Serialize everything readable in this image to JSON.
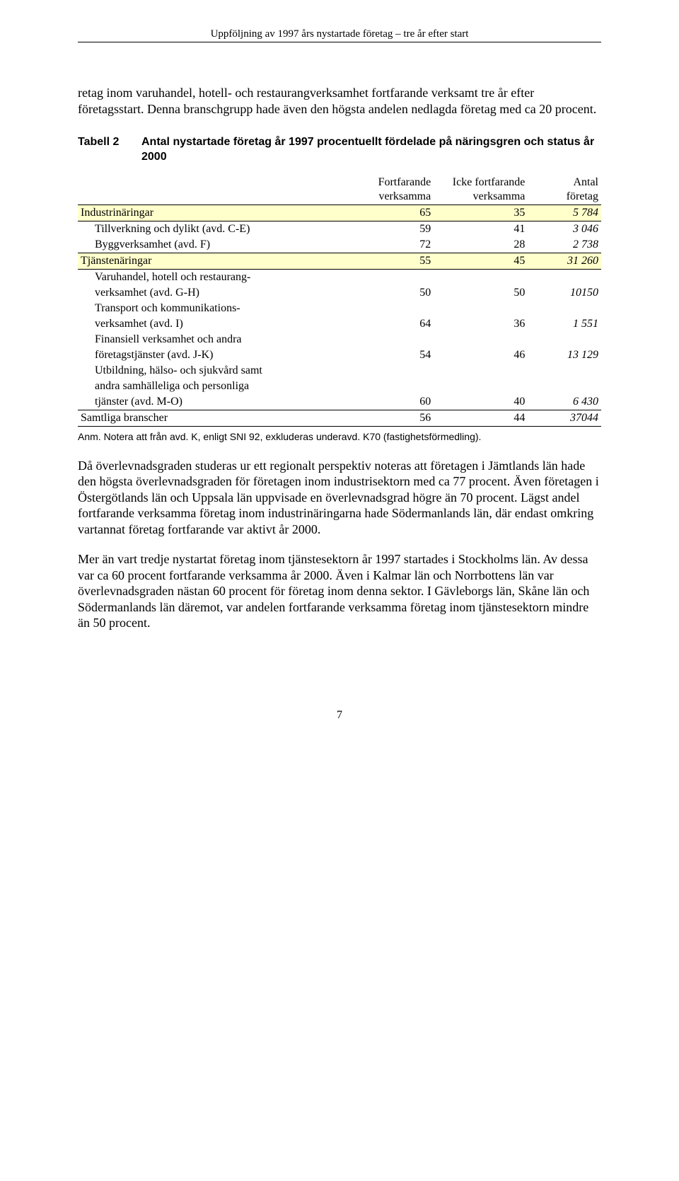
{
  "running_head": "Uppföljning av 1997 års nystartade företag – tre år efter start",
  "intro_para": "retag inom varuhandel, hotell- och restaurangverksamhet fortfarande verksamt tre år efter företagsstart. Denna branschgrupp hade även den högsta andelen nedlagda företag med ca 20 procent.",
  "table_caption_label": "Tabell 2",
  "table_caption_text": "Antal nystartade företag år 1997 procentuellt fördelade på näringsgren och status år 2000",
  "columns": {
    "c1_line1": "Fortfarande",
    "c1_line2": "verksamma",
    "c2_line1": "Icke fortfarande",
    "c2_line2": "verksamma",
    "c3_line1": "Antal",
    "c3_line2": "företag"
  },
  "rows": [
    {
      "label": "Industrinäringar",
      "v1": "65",
      "v2": "35",
      "v3": "5 784",
      "highlight": true,
      "indent": 0,
      "italic_v3": true,
      "rule_bottom": true
    },
    {
      "label": "Tillverkning och dylikt (avd. C-E)",
      "v1": "59",
      "v2": "41",
      "v3": "3 046",
      "highlight": false,
      "indent": 1,
      "italic_v3": true
    },
    {
      "label": "Byggverksamhet (avd. F)",
      "v1": "72",
      "v2": "28",
      "v3": "2 738",
      "highlight": false,
      "indent": 1,
      "italic_v3": true
    },
    {
      "label": "Tjänstenäringar",
      "v1": "55",
      "v2": "45",
      "v3": "31 260",
      "highlight": true,
      "indent": 0,
      "italic_v3": true,
      "rule_top": true,
      "rule_bottom": true
    },
    {
      "label": "Varuhandel, hotell och restaurang-",
      "indent": 1
    },
    {
      "label": "verksamhet (avd. G-H)",
      "v1": "50",
      "v2": "50",
      "v3": "10150",
      "indent": 1,
      "italic_v3": true
    },
    {
      "label": "Transport och kommunikations-",
      "indent": 1
    },
    {
      "label": "verksamhet (avd. I)",
      "v1": "64",
      "v2": "36",
      "v3": "1 551",
      "indent": 1,
      "italic_v3": true
    },
    {
      "label": "Finansiell verksamhet och andra",
      "indent": 1
    },
    {
      "label": "företagstjänster (avd. J-K)",
      "v1": "54",
      "v2": "46",
      "v3": "13 129",
      "indent": 1,
      "italic_v3": true
    },
    {
      "label": "Utbildning, hälso- och sjukvård samt",
      "indent": 1
    },
    {
      "label": "andra samhälleliga och personliga",
      "indent": 1
    },
    {
      "label": "tjänster (avd. M-O)",
      "v1": "60",
      "v2": "40",
      "v3": "6 430",
      "indent": 2,
      "italic_v3": true
    },
    {
      "label": "Samtliga branscher",
      "v1": "56",
      "v2": "44",
      "v3": "37044",
      "indent": 0,
      "italic_v3": true,
      "rule_top": true,
      "rule_bottom": true
    }
  ],
  "table_note": "Anm. Notera att från avd. K, enligt SNI 92, exkluderas underavd. K70 (fastighetsförmedling).",
  "para2": "Då överlevnadsgraden studeras ur ett regionalt perspektiv noteras att företagen i Jämtlands län hade den högsta överlevnadsgraden för företagen inom industrisektorn med ca 77 procent. Även företagen i Östergötlands län och Uppsala län uppvisade en överlevnadsgrad högre än 70 procent. Lägst andel fortfarande verksamma företag inom industrinäringarna hade Södermanlands län, där endast omkring vartannat företag fortfarande var aktivt år 2000.",
  "para3": "Mer än vart tredje nystartat företag inom tjänstesektorn år 1997 startades i Stockholms län. Av dessa var ca 60 procent fortfarande verksamma år 2000. Även i Kalmar län och Norrbottens län var överlevnadsgraden nästan 60 procent för företag inom denna sektor. I Gävleborgs län, Skåne län och Södermanlands län däremot, var andelen fortfarande verksamma företag inom tjänstesektorn mindre än 50 procent.",
  "page_number": "7",
  "colors": {
    "highlight": "#ffffcc",
    "text": "#000000",
    "background": "#ffffff"
  },
  "col_widths": {
    "label": "52%",
    "c1": "16%",
    "c2": "18%",
    "c3": "14%"
  }
}
